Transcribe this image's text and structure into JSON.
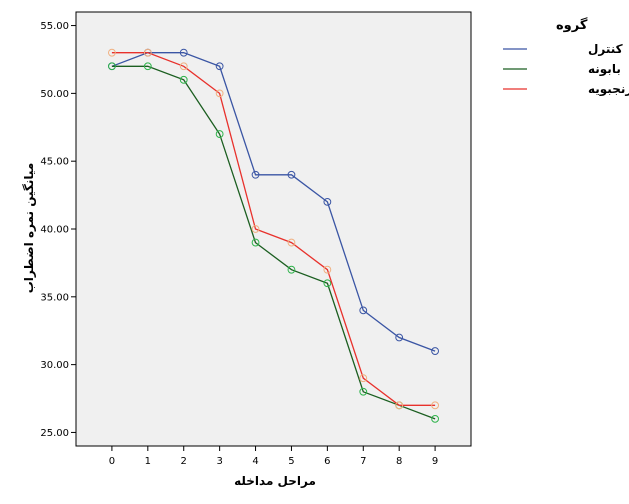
{
  "chart_data": {
    "type": "line",
    "xlabel": "مراحل مداخله",
    "ylabel": "میانگین نمره اضطراب",
    "x": [
      0,
      1,
      2,
      3,
      4,
      5,
      6,
      7,
      8,
      9
    ],
    "xlim": [
      -1,
      10
    ],
    "ylim": [
      24,
      56
    ],
    "yticks": [
      25,
      30,
      35,
      40,
      45,
      50,
      55
    ],
    "ytick_labels": [
      "25.00",
      "30.00",
      "35.00",
      "40.00",
      "45.00",
      "50.00",
      "55.00"
    ],
    "grid": false,
    "legend_position": "top-right",
    "legend_title": "گروه",
    "series": [
      {
        "name": "کنترل",
        "color": "#3a55a4",
        "marker_color": "#3a55a4",
        "values": [
          52,
          53,
          53,
          52,
          44,
          44,
          42,
          34,
          32,
          31
        ]
      },
      {
        "name": "بابونه",
        "color": "#1b5e20",
        "marker_color": "#2db34a",
        "values": [
          52,
          52,
          51,
          47,
          39,
          37,
          36,
          28,
          27,
          26
        ]
      },
      {
        "name": "بادرنجبویه",
        "color": "#e8312c",
        "marker_color": "#f0b080",
        "values": [
          53,
          53,
          52,
          50,
          40,
          39,
          37,
          29,
          27,
          27
        ]
      }
    ],
    "colors": {
      "plot_background": "#f0f0f0",
      "axis": "#000000"
    }
  }
}
